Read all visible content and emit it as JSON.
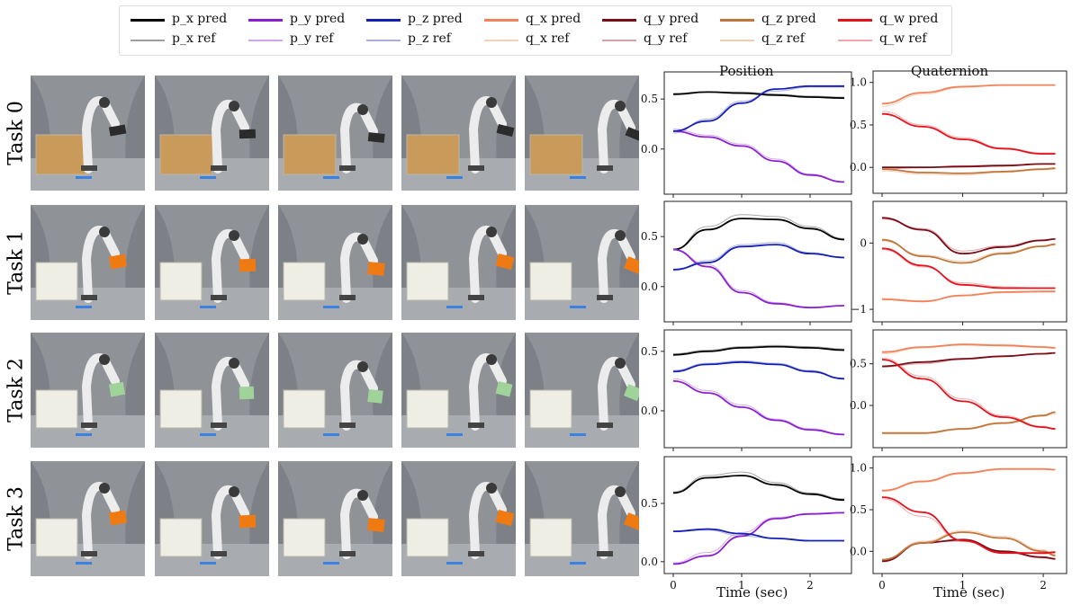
{
  "legend": {
    "items": [
      {
        "label": "p_x pred",
        "color": "#000000",
        "kind": "pred"
      },
      {
        "label": "p_x ref",
        "color": "#9e9e9e",
        "kind": "ref"
      },
      {
        "label": "p_y pred",
        "color": "#8a1fd0",
        "kind": "pred"
      },
      {
        "label": "p_y ref",
        "color": "#cfa6ee",
        "kind": "ref"
      },
      {
        "label": "p_z pred",
        "color": "#1420b4",
        "kind": "pred"
      },
      {
        "label": "p_z ref",
        "color": "#a9acdd",
        "kind": "ref"
      },
      {
        "label": "q_x pred",
        "color": "#f2825a",
        "kind": "pred"
      },
      {
        "label": "q_x ref",
        "color": "#f7cfb8",
        "kind": "ref"
      },
      {
        "label": "q_y pred",
        "color": "#7a0c16",
        "kind": "pred"
      },
      {
        "label": "q_y ref",
        "color": "#d6a2a7",
        "kind": "ref"
      },
      {
        "label": "q_z pred",
        "color": "#c0763a",
        "kind": "pred"
      },
      {
        "label": "q_z ref",
        "color": "#efcdb0",
        "kind": "ref"
      },
      {
        "label": "q_w pred",
        "color": "#e3121b",
        "kind": "pred"
      },
      {
        "label": "q_w ref",
        "color": "#f5a5a8",
        "kind": "ref"
      }
    ]
  },
  "tasks": [
    "Task 0",
    "Task 1",
    "Task 2",
    "Task 3"
  ],
  "column_titles": {
    "position": "Position",
    "quaternion": "Quaternion"
  },
  "xlabel": "Time (sec)",
  "photos": {
    "background": "#8d9196",
    "box_colors": [
      "#c99a5a",
      "#efeee4",
      "#efeee4",
      "#efeee4"
    ],
    "object_colors": [
      "#2b2b2b",
      "#f07a12",
      "#9fd39a",
      "#f07a12"
    ]
  },
  "chart_data": [
    {
      "type": "line",
      "task": "Task 0",
      "panel": "Position",
      "xlim": [
        0,
        2.5
      ],
      "ylim": [
        -0.38,
        0.7
      ],
      "xticks": [
        0,
        1,
        2
      ],
      "yticks": [
        0.0,
        0.5
      ],
      "ytick_labels": [
        "0.0",
        "0.5"
      ],
      "x": [
        0,
        0.5,
        1.0,
        1.5,
        2.0,
        2.5
      ],
      "series": [
        {
          "name": "p_x pred",
          "values": [
            0.55,
            0.57,
            0.56,
            0.54,
            0.52,
            0.51
          ]
        },
        {
          "name": "p_x ref",
          "values": [
            0.54,
            0.57,
            0.57,
            0.55,
            0.53,
            0.52
          ]
        },
        {
          "name": "p_y pred",
          "values": [
            0.18,
            0.12,
            0.03,
            -0.12,
            -0.26,
            -0.33
          ]
        },
        {
          "name": "p_y ref",
          "values": [
            0.2,
            0.14,
            0.05,
            -0.1,
            -0.25,
            -0.33
          ]
        },
        {
          "name": "p_z pred",
          "values": [
            0.18,
            0.28,
            0.46,
            0.6,
            0.63,
            0.63
          ]
        },
        {
          "name": "p_z ref",
          "values": [
            0.16,
            0.3,
            0.48,
            0.58,
            0.62,
            0.62
          ]
        }
      ]
    },
    {
      "type": "line",
      "task": "Task 0",
      "panel": "Quaternion",
      "xlim": [
        0,
        2.2
      ],
      "ylim": [
        -0.22,
        1.05
      ],
      "xticks": [
        0,
        1,
        2
      ],
      "yticks": [
        0.0,
        0.5,
        1.0
      ],
      "ytick_labels": [
        "0.0",
        "0.5",
        "1.0"
      ],
      "x": [
        0,
        0.5,
        1.0,
        1.5,
        2.0,
        2.15
      ],
      "series": [
        {
          "name": "q_x pred",
          "values": [
            0.75,
            0.88,
            0.95,
            0.97,
            0.97,
            0.97
          ]
        },
        {
          "name": "q_x ref",
          "values": [
            0.72,
            0.86,
            0.94,
            0.97,
            0.97,
            0.97
          ]
        },
        {
          "name": "q_y pred",
          "values": [
            0.0,
            0.0,
            0.01,
            0.02,
            0.04,
            0.04
          ]
        },
        {
          "name": "q_y ref",
          "values": [
            -0.02,
            0.0,
            0.02,
            0.03,
            0.04,
            0.04
          ]
        },
        {
          "name": "q_z pred",
          "values": [
            -0.02,
            -0.06,
            -0.07,
            -0.05,
            -0.02,
            -0.01
          ]
        },
        {
          "name": "q_z ref",
          "values": [
            -0.04,
            -0.08,
            -0.09,
            -0.06,
            -0.03,
            -0.02
          ]
        },
        {
          "name": "q_w pred",
          "values": [
            0.63,
            0.48,
            0.33,
            0.22,
            0.16,
            0.16
          ]
        },
        {
          "name": "q_w ref",
          "values": [
            0.66,
            0.5,
            0.35,
            0.23,
            0.17,
            0.17
          ]
        }
      ]
    },
    {
      "type": "line",
      "task": "Task 1",
      "panel": "Position",
      "xlim": [
        0,
        2.5
      ],
      "ylim": [
        -0.28,
        0.78
      ],
      "xticks": [
        0,
        1,
        2
      ],
      "yticks": [
        0.0,
        0.5
      ],
      "ytick_labels": [
        "0.0",
        "0.5"
      ],
      "x": [
        0,
        0.5,
        1.0,
        1.5,
        2.0,
        2.5
      ],
      "series": [
        {
          "name": "p_x pred",
          "values": [
            0.37,
            0.57,
            0.68,
            0.67,
            0.58,
            0.47
          ]
        },
        {
          "name": "p_x ref",
          "values": [
            0.37,
            0.6,
            0.72,
            0.7,
            0.6,
            0.48
          ]
        },
        {
          "name": "p_y pred",
          "values": [
            0.37,
            0.2,
            -0.06,
            -0.17,
            -0.21,
            -0.19
          ]
        },
        {
          "name": "p_y ref",
          "values": [
            0.37,
            0.22,
            -0.04,
            -0.16,
            -0.21,
            -0.19
          ]
        },
        {
          "name": "p_z pred",
          "values": [
            0.17,
            0.24,
            0.4,
            0.42,
            0.33,
            0.29
          ]
        },
        {
          "name": "p_z ref",
          "values": [
            0.16,
            0.26,
            0.42,
            0.44,
            0.34,
            0.29
          ]
        }
      ]
    },
    {
      "type": "line",
      "task": "Task 1",
      "panel": "Quaternion",
      "xlim": [
        0,
        2.2
      ],
      "ylim": [
        -1.08,
        0.52
      ],
      "xticks": [
        0,
        1,
        2
      ],
      "yticks": [
        -1,
        0
      ],
      "ytick_labels": [
        "−1",
        "0"
      ],
      "x": [
        0,
        0.5,
        1.0,
        1.5,
        2.0,
        2.15
      ],
      "series": [
        {
          "name": "q_x pred",
          "values": [
            -0.85,
            -0.88,
            -0.79,
            -0.74,
            -0.73,
            -0.73
          ]
        },
        {
          "name": "q_x ref",
          "values": [
            -0.83,
            -0.87,
            -0.8,
            -0.75,
            -0.74,
            -0.74
          ]
        },
        {
          "name": "q_y pred",
          "values": [
            0.38,
            0.2,
            -0.16,
            -0.06,
            0.04,
            0.06
          ]
        },
        {
          "name": "q_y ref",
          "values": [
            0.36,
            0.22,
            -0.12,
            -0.04,
            0.05,
            0.07
          ]
        },
        {
          "name": "q_z pred",
          "values": [
            0.05,
            -0.2,
            -0.3,
            -0.16,
            -0.05,
            -0.02
          ]
        },
        {
          "name": "q_z ref",
          "values": [
            0.03,
            -0.18,
            -0.27,
            -0.14,
            -0.04,
            -0.01
          ]
        },
        {
          "name": "q_w pred",
          "values": [
            -0.08,
            -0.34,
            -0.63,
            -0.68,
            -0.68,
            -0.68
          ]
        },
        {
          "name": "q_w ref",
          "values": [
            -0.1,
            -0.36,
            -0.6,
            -0.66,
            -0.68,
            -0.68
          ]
        }
      ]
    },
    {
      "type": "line",
      "task": "Task 2",
      "panel": "Position",
      "xlim": [
        0,
        2.5
      ],
      "ylim": [
        -0.25,
        0.62
      ],
      "xticks": [
        0,
        1,
        2
      ],
      "yticks": [
        0.0,
        0.5
      ],
      "ytick_labels": [
        "0.0",
        "0.5"
      ],
      "x": [
        0,
        0.5,
        1.0,
        1.5,
        2.0,
        2.5
      ],
      "series": [
        {
          "name": "p_x pred",
          "values": [
            0.47,
            0.5,
            0.53,
            0.54,
            0.53,
            0.51
          ]
        },
        {
          "name": "p_x ref",
          "values": [
            0.48,
            0.51,
            0.54,
            0.55,
            0.54,
            0.52
          ]
        },
        {
          "name": "p_y pred",
          "values": [
            0.25,
            0.15,
            0.03,
            -0.08,
            -0.16,
            -0.2
          ]
        },
        {
          "name": "p_y ref",
          "values": [
            0.27,
            0.17,
            0.05,
            -0.07,
            -0.15,
            -0.2
          ]
        },
        {
          "name": "p_z pred",
          "values": [
            0.33,
            0.39,
            0.41,
            0.39,
            0.33,
            0.27
          ]
        },
        {
          "name": "p_z ref",
          "values": [
            0.34,
            0.4,
            0.42,
            0.4,
            0.34,
            0.27
          ]
        }
      ]
    },
    {
      "type": "line",
      "task": "Task 2",
      "panel": "Quaternion",
      "xlim": [
        0,
        2.2
      ],
      "ylim": [
        -0.42,
        0.82
      ],
      "xticks": [
        0,
        1,
        2
      ],
      "yticks": [
        0.0,
        0.5
      ],
      "ytick_labels": [
        "0.0",
        "0.5"
      ],
      "x": [
        0,
        0.5,
        1.0,
        1.5,
        2.0,
        2.15
      ],
      "series": [
        {
          "name": "q_x pred",
          "values": [
            0.64,
            0.7,
            0.73,
            0.72,
            0.7,
            0.69
          ]
        },
        {
          "name": "q_x ref",
          "values": [
            0.62,
            0.69,
            0.74,
            0.73,
            0.71,
            0.7
          ]
        },
        {
          "name": "q_y pred",
          "values": [
            0.47,
            0.52,
            0.56,
            0.59,
            0.62,
            0.63
          ]
        },
        {
          "name": "q_y ref",
          "values": [
            0.46,
            0.5,
            0.55,
            0.59,
            0.62,
            0.63
          ]
        },
        {
          "name": "q_z pred",
          "values": [
            -0.33,
            -0.33,
            -0.28,
            -0.21,
            -0.12,
            -0.08
          ]
        },
        {
          "name": "q_z ref",
          "values": [
            -0.34,
            -0.34,
            -0.29,
            -0.22,
            -0.13,
            -0.1
          ]
        },
        {
          "name": "q_w pred",
          "values": [
            0.55,
            0.32,
            0.05,
            -0.14,
            -0.26,
            -0.28
          ]
        },
        {
          "name": "q_w ref",
          "values": [
            0.57,
            0.35,
            0.08,
            -0.12,
            -0.25,
            -0.29
          ]
        }
      ]
    },
    {
      "type": "line",
      "task": "Task 3",
      "panel": "Position",
      "xlim": [
        0,
        2.5
      ],
      "ylim": [
        -0.04,
        0.84
      ],
      "xticks": [
        0,
        1,
        2
      ],
      "yticks": [
        0.0,
        0.5
      ],
      "ytick_labels": [
        "0.0",
        "0.5"
      ],
      "x": [
        0,
        0.5,
        1.0,
        1.5,
        2.0,
        2.5
      ],
      "series": [
        {
          "name": "p_x pred",
          "values": [
            0.59,
            0.72,
            0.74,
            0.66,
            0.58,
            0.53
          ]
        },
        {
          "name": "p_x ref",
          "values": [
            0.6,
            0.74,
            0.77,
            0.68,
            0.59,
            0.54
          ]
        },
        {
          "name": "p_y pred",
          "values": [
            -0.02,
            0.05,
            0.22,
            0.37,
            0.41,
            0.42
          ]
        },
        {
          "name": "p_y ref",
          "values": [
            -0.01,
            0.08,
            0.25,
            0.38,
            0.41,
            0.42
          ]
        },
        {
          "name": "p_z pred",
          "values": [
            0.26,
            0.28,
            0.24,
            0.2,
            0.18,
            0.18
          ]
        },
        {
          "name": "p_z ref",
          "values": [
            0.26,
            0.27,
            0.22,
            0.2,
            0.18,
            0.18
          ]
        }
      ]
    },
    {
      "type": "line",
      "task": "Task 3",
      "panel": "Quaternion",
      "xlim": [
        0,
        2.2
      ],
      "ylim": [
        -0.18,
        1.05
      ],
      "xticks": [
        0,
        1,
        2
      ],
      "yticks": [
        0.0,
        0.5,
        1.0
      ],
      "ytick_labels": [
        "0.0",
        "0.5",
        "1.0"
      ],
      "x": [
        0,
        0.5,
        1.0,
        1.5,
        2.0,
        2.15
      ],
      "series": [
        {
          "name": "q_x pred",
          "values": [
            0.73,
            0.84,
            0.94,
            0.99,
            0.99,
            0.98
          ]
        },
        {
          "name": "q_x ref",
          "values": [
            0.72,
            0.83,
            0.93,
            0.98,
            0.98,
            0.98
          ]
        },
        {
          "name": "q_y pred",
          "values": [
            -0.12,
            0.1,
            0.14,
            0.0,
            -0.07,
            -0.09
          ]
        },
        {
          "name": "q_y ref",
          "values": [
            -0.1,
            0.12,
            0.12,
            -0.01,
            -0.08,
            -0.09
          ]
        },
        {
          "name": "q_z pred",
          "values": [
            -0.1,
            0.1,
            0.23,
            0.16,
            0.0,
            -0.05
          ]
        },
        {
          "name": "q_z ref",
          "values": [
            -0.11,
            0.12,
            0.25,
            0.18,
            0.02,
            -0.04
          ]
        },
        {
          "name": "q_w pred",
          "values": [
            0.65,
            0.47,
            0.13,
            -0.02,
            -0.02,
            -0.01
          ]
        },
        {
          "name": "q_w ref",
          "values": [
            0.63,
            0.42,
            0.12,
            0.0,
            -0.03,
            -0.02
          ]
        }
      ]
    }
  ]
}
